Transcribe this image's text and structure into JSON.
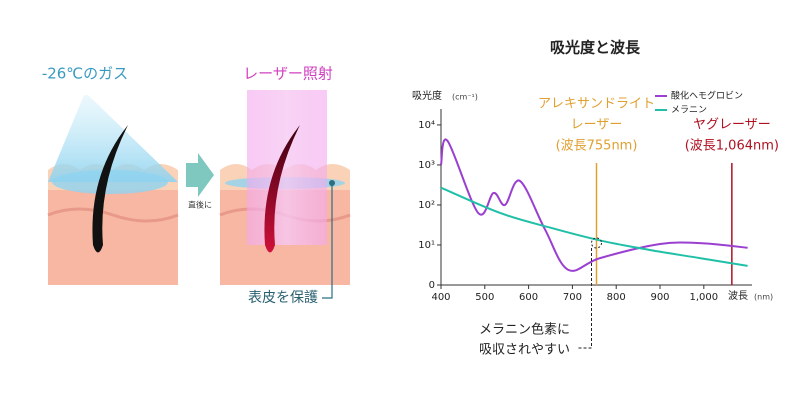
{
  "illustration": {
    "gas_label": "-26℃のガス",
    "arrow_label": "直後に",
    "laser_label": "レーザー照射",
    "protect_label": "表皮を保護"
  },
  "chart_data": {
    "type": "line",
    "title": "吸光度と波長",
    "y_label": "吸光度",
    "y_unit": "(cm⁻¹)",
    "x_label": "波長",
    "x_unit": "(nm)",
    "log_y": true,
    "legend": "upper right",
    "xlim": [
      400,
      1110
    ],
    "ylim": [
      1,
      25000
    ],
    "xticks": [
      400,
      500,
      600,
      700,
      800,
      900,
      {
        "value": 1000,
        "label": "1,000"
      }
    ],
    "yticks": [
      {
        "value": 1,
        "label": "0"
      },
      {
        "value": 10,
        "label": "10¹"
      },
      {
        "value": 100,
        "label": "10²"
      },
      {
        "value": 1000,
        "label": "10³"
      },
      {
        "value": 10000,
        "label": "10⁴"
      }
    ],
    "series": [
      {
        "name": "酸化ヘモグロビン",
        "color": "#9b3fd0",
        "x": [
          400,
          415,
          485,
          520,
          546,
          580,
          637,
          690,
          763,
          900,
          1000,
          1100
        ],
        "values": [
          1000,
          4000,
          63,
          200,
          100,
          400,
          25,
          2.4,
          4.7,
          10.6,
          11,
          8.5
        ]
      },
      {
        "name": "メラニン",
        "color": "#20c0a8",
        "x": [
          400,
          535,
          650,
          763,
          877,
          991,
          1100
        ],
        "values": [
          270,
          63,
          27,
          13,
          7.5,
          4.7,
          3
        ]
      }
    ],
    "annotations": [
      {
        "x": 755,
        "color": "#e0a030",
        "lines": [
          "アレキサンドライト",
          "レーザー",
          "(波長755nm)"
        ]
      },
      {
        "x": 1064,
        "color": "#b01020",
        "lines": [
          "ヤグレーザー",
          "(波長1,064nm)"
        ]
      }
    ],
    "note": [
      "メラニン色素に",
      "吸収されやすい"
    ]
  }
}
